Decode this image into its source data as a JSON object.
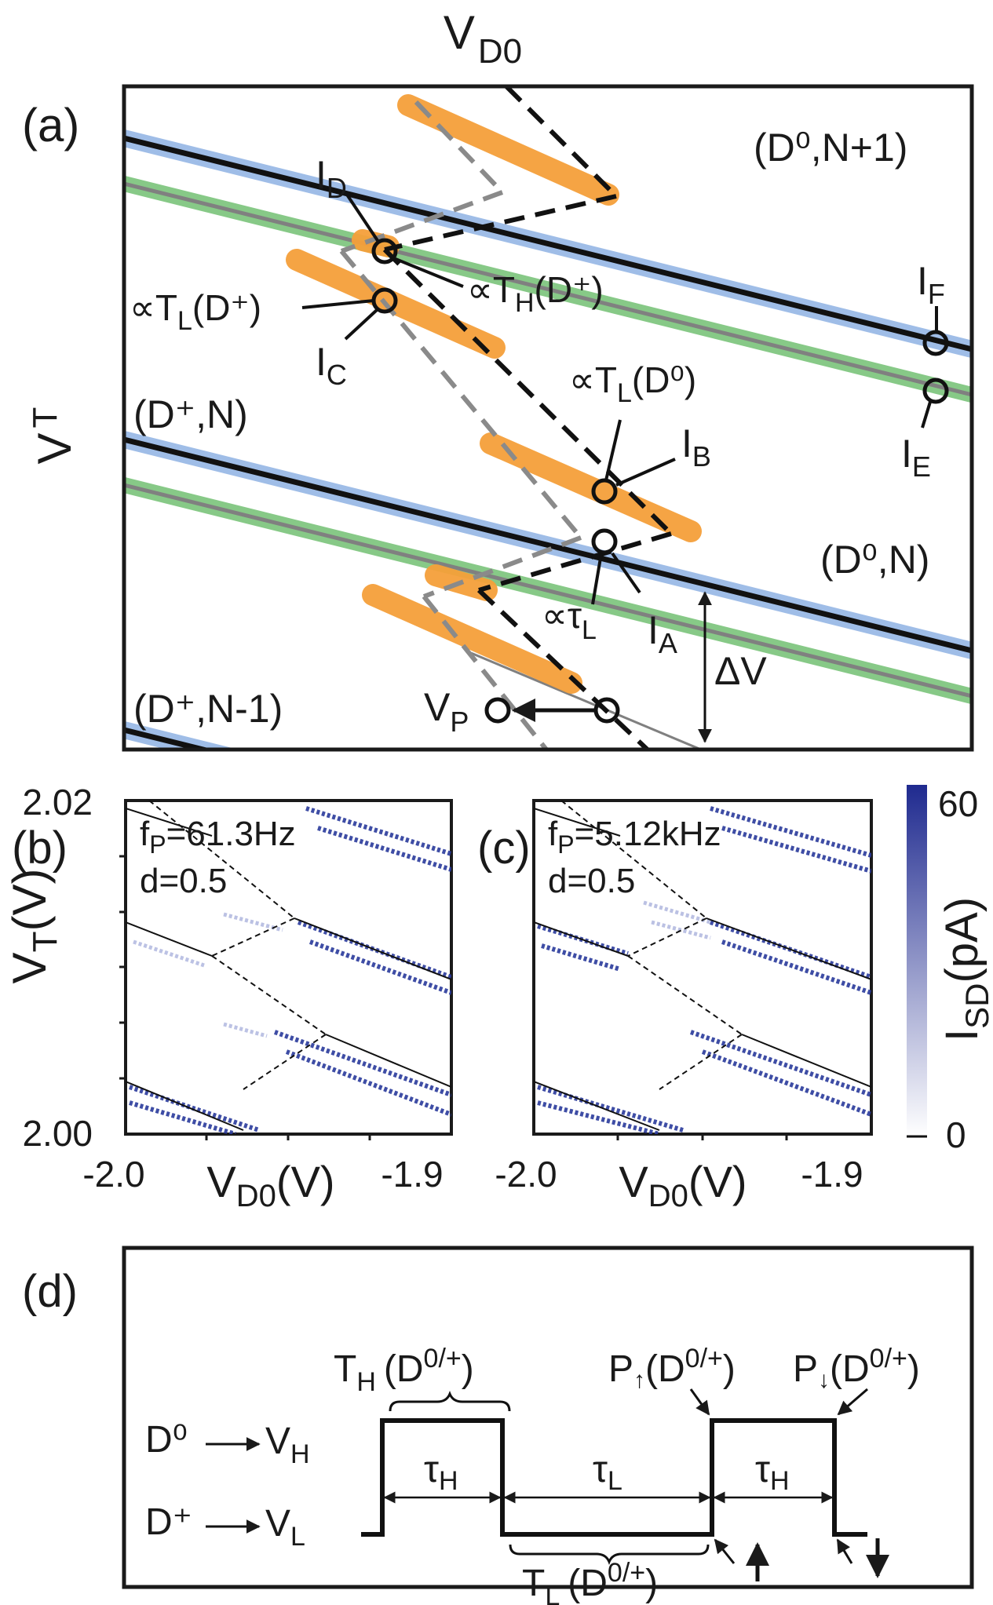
{
  "panel_a": {
    "label": "(a)",
    "xlabel": "V",
    "xlabel_sub": "D0",
    "ylabel": "V",
    "ylabel_sub": "T",
    "regions": {
      "d0_np1": "(D⁰,N+1)",
      "dp_n": "(D⁺,N)",
      "d0_n": "(D⁰,N)",
      "dp_nm1": "(D⁺,N-1)"
    },
    "currents": {
      "ID": "I",
      "ID_sub": "D",
      "IC": "I",
      "IC_sub": "C",
      "IB": "I",
      "IB_sub": "B",
      "IA": "I",
      "IA_sub": "A",
      "IF": "I",
      "IF_sub": "F",
      "IE": "I",
      "IE_sub": "E"
    },
    "annotations": {
      "TH_Dplus": "∝T",
      "TH_Dplus_sub": "H",
      "TH_Dplus_arg": "(D⁺)",
      "TL_Dplus": "∝T",
      "TL_Dplus_sub": "L",
      "TL_Dplus_arg": "(D⁺)",
      "TL_D0": "∝T",
      "TL_D0_sub": "L",
      "TL_D0_arg": "(D⁰)",
      "tauL": "∝τ",
      "tauL_sub": "L",
      "VP": "V",
      "VP_sub": "P",
      "deltaV": "ΔV"
    }
  },
  "panel_b": {
    "label": "(b)",
    "freq": "f",
    "freq_sub": "P",
    "freq_val": "=61.3Hz",
    "duty": "d=0.5"
  },
  "panel_c": {
    "label": "(c)",
    "freq": "f",
    "freq_sub": "P",
    "freq_val": "=5.12kHz",
    "duty": "d=0.5"
  },
  "maps_axes": {
    "ylabel": "V",
    "ylabel_sub": "T",
    "ylabel_unit": "(V)",
    "ytick_top": "2.02",
    "ytick_bottom": "2.00",
    "xlabel": "V",
    "xlabel_sub": "D0",
    "xlabel_unit": "(V)",
    "xtick_left": "-2.0",
    "xtick_right": "-1.9",
    "colorbar_label": "I",
    "colorbar_sub": "SD",
    "colorbar_unit": "(pA)",
    "colorbar_max": "60",
    "colorbar_min": "0",
    "colorbar_color": "#1f2a8f"
  },
  "panel_d": {
    "label": "(d)",
    "d0_level": "D⁰",
    "vh": "V",
    "vh_sub": "H",
    "dp_level": "D⁺",
    "vl": "V",
    "vl_sub": "L",
    "tauH1": "τ",
    "tauH1_sub": "H",
    "tauL": "τ",
    "tauL_sub": "L",
    "tauH2": "τ",
    "tauH2_sub": "H",
    "TH": "T",
    "TH_sub": "H",
    "TH_arg": "(D",
    "TH_sup": "0/+",
    "TH_close": ")",
    "TL": "T",
    "TL_sub": "L",
    "TL_arg": "(D",
    "TL_sup": "0/+",
    "TL_close": ")",
    "Pup": "P",
    "Pup_arg": "(D",
    "Pup_sup": "0/+",
    "Pup_close": ")",
    "Pdown": "P",
    "Pdown_arg": "(D",
    "Pdown_sup": "0/+",
    "Pdown_close": ")"
  },
  "colors": {
    "orange": "#f5a03a",
    "blue_glow": "#7fa7e0",
    "green_glow": "#5fb85f",
    "dark_blue": "#1f2a8f"
  }
}
